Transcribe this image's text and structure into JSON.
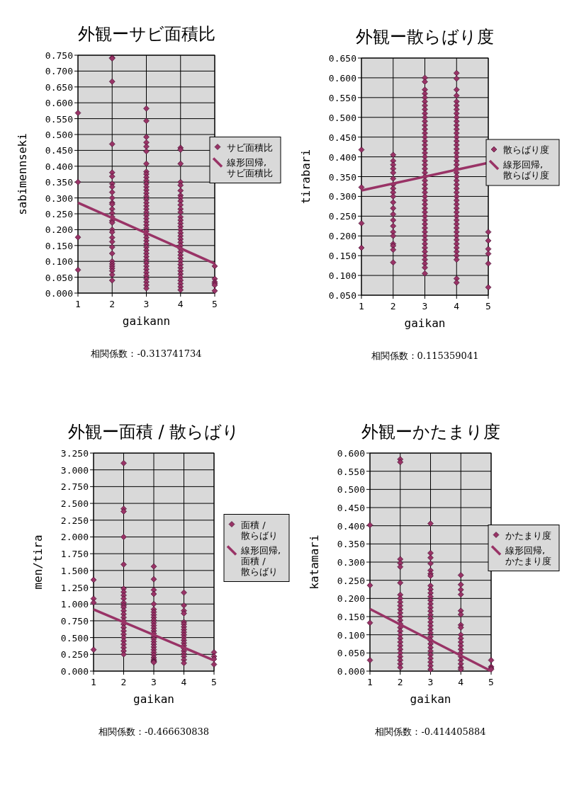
{
  "chart_data": [
    {
      "type": "scatter",
      "title": "外観ーサビ面積比",
      "xlabel": "gaikann",
      "ylabel": "sabimennseki",
      "annotations": [
        "相関係数：-0.313741734"
      ],
      "grid": true,
      "legend": "right",
      "xlim": [
        1,
        5
      ],
      "xticks": [
        1,
        2,
        3,
        4,
        5
      ],
      "ylim": [
        0,
        0.75
      ],
      "yticks": [
        {
          "value": 0,
          "label": "0.000"
        },
        {
          "value": 0.05,
          "label": "0.050"
        },
        {
          "value": 0.1,
          "label": "0.100"
        },
        {
          "value": 0.15,
          "label": "0.150"
        },
        {
          "value": 0.2,
          "label": "0.200"
        },
        {
          "value": 0.25,
          "label": "0.250"
        },
        {
          "value": 0.3,
          "label": "0.300"
        },
        {
          "value": 0.35,
          "label": "0.350"
        },
        {
          "value": 0.4,
          "label": "0.400"
        },
        {
          "value": 0.45,
          "label": "0.450"
        },
        {
          "value": 0.5,
          "label": "0.500"
        },
        {
          "value": 0.55,
          "label": "0.550"
        },
        {
          "value": 0.6,
          "label": "0.600"
        },
        {
          "value": 0.65,
          "label": "0.650"
        },
        {
          "value": 0.7,
          "label": "0.700"
        },
        {
          "value": 0.75,
          "label": "0.750"
        }
      ],
      "series": [
        {
          "name": "サビ面積比",
          "color": "#993366",
          "marker": "diamond",
          "x": [
            1,
            1,
            1,
            1,
            2,
            2,
            2,
            2,
            2,
            2,
            2,
            2,
            2,
            2,
            2,
            2,
            2,
            2,
            2,
            2,
            2,
            2,
            2,
            2,
            2,
            2,
            2,
            2,
            2,
            2,
            2,
            2,
            2,
            2,
            3,
            3,
            3,
            3,
            3,
            3,
            3,
            3,
            3,
            3,
            3,
            3,
            3,
            3,
            3,
            3,
            3,
            3,
            3,
            3,
            3,
            3,
            3,
            3,
            3,
            3,
            3,
            3,
            3,
            3,
            3,
            3,
            3,
            3,
            3,
            3,
            3,
            3,
            3,
            3,
            3,
            3,
            3,
            3,
            3,
            4,
            4,
            4,
            4,
            4,
            4,
            4,
            4,
            4,
            4,
            4,
            4,
            4,
            4,
            4,
            4,
            4,
            4,
            4,
            4,
            4,
            4,
            4,
            4,
            4,
            4,
            4,
            4,
            4,
            4,
            4,
            4,
            4,
            4,
            4,
            4,
            5,
            5,
            5,
            5,
            5,
            5
          ],
          "values": [
            0.568,
            0.35,
            0.176,
            0.073,
            0.742,
            0.74,
            0.667,
            0.47,
            0.38,
            0.368,
            0.345,
            0.335,
            0.318,
            0.3,
            0.285,
            0.28,
            0.265,
            0.252,
            0.24,
            0.228,
            0.222,
            0.2,
            0.192,
            0.175,
            0.162,
            0.145,
            0.125,
            0.1,
            0.092,
            0.085,
            0.078,
            0.07,
            0.058,
            0.04,
            0.582,
            0.543,
            0.492,
            0.475,
            0.462,
            0.447,
            0.408,
            0.383,
            0.375,
            0.365,
            0.355,
            0.345,
            0.335,
            0.325,
            0.315,
            0.305,
            0.295,
            0.285,
            0.275,
            0.265,
            0.255,
            0.245,
            0.235,
            0.225,
            0.215,
            0.205,
            0.195,
            0.185,
            0.175,
            0.165,
            0.155,
            0.145,
            0.135,
            0.125,
            0.115,
            0.105,
            0.095,
            0.085,
            0.075,
            0.065,
            0.055,
            0.045,
            0.035,
            0.025,
            0.015,
            0.458,
            0.452,
            0.408,
            0.35,
            0.34,
            0.323,
            0.308,
            0.3,
            0.29,
            0.278,
            0.265,
            0.255,
            0.24,
            0.23,
            0.22,
            0.21,
            0.2,
            0.19,
            0.18,
            0.17,
            0.16,
            0.15,
            0.14,
            0.13,
            0.12,
            0.11,
            0.1,
            0.09,
            0.08,
            0.07,
            0.06,
            0.05,
            0.04,
            0.03,
            0.02,
            0.01,
            0.085,
            0.045,
            0.035,
            0.03,
            0.025,
            0.007
          ]
        },
        {
          "name": "線形回帰, サビ面積比",
          "type": "line",
          "color": "#993366",
          "x": [
            1,
            5
          ],
          "values": [
            0.285,
            0.093
          ]
        }
      ]
    },
    {
      "type": "scatter",
      "title": "外観ー散らばり度",
      "xlabel": "gaikan",
      "ylabel": "tirabari",
      "annotations": [
        "相関係数：0.115359041"
      ],
      "grid": true,
      "legend": "right",
      "xlim": [
        1,
        5
      ],
      "xticks": [
        1,
        2,
        3,
        4,
        5
      ],
      "ylim": [
        0.05,
        0.65
      ],
      "yticks": [
        {
          "value": 0.05,
          "label": "0.050"
        },
        {
          "value": 0.1,
          "label": "0.100"
        },
        {
          "value": 0.15,
          "label": "0.150"
        },
        {
          "value": 0.2,
          "label": "0.200"
        },
        {
          "value": 0.25,
          "label": "0.250"
        },
        {
          "value": 0.3,
          "label": "0.300"
        },
        {
          "value": 0.35,
          "label": "0.350"
        },
        {
          "value": 0.4,
          "label": "0.400"
        },
        {
          "value": 0.45,
          "label": "0.450"
        },
        {
          "value": 0.5,
          "label": "0.500"
        },
        {
          "value": 0.55,
          "label": "0.550"
        },
        {
          "value": 0.6,
          "label": "0.600"
        },
        {
          "value": 0.65,
          "label": "0.650"
        }
      ],
      "series": [
        {
          "name": "散らばり度",
          "color": "#993366",
          "marker": "diamond",
          "x": [
            1,
            1,
            1,
            1,
            2,
            2,
            2,
            2,
            2,
            2,
            2,
            2,
            2,
            2,
            2,
            2,
            2,
            2,
            2,
            2,
            2,
            2,
            2,
            2,
            2,
            3,
            3,
            3,
            3,
            3,
            3,
            3,
            3,
            3,
            3,
            3,
            3,
            3,
            3,
            3,
            3,
            3,
            3,
            3,
            3,
            3,
            3,
            3,
            3,
            3,
            3,
            3,
            3,
            3,
            3,
            3,
            3,
            3,
            3,
            3,
            3,
            3,
            3,
            3,
            3,
            3,
            3,
            3,
            3,
            3,
            3,
            3,
            3,
            3,
            4,
            4,
            4,
            4,
            4,
            4,
            4,
            4,
            4,
            4,
            4,
            4,
            4,
            4,
            4,
            4,
            4,
            4,
            4,
            4,
            4,
            4,
            4,
            4,
            4,
            4,
            4,
            4,
            4,
            4,
            4,
            4,
            4,
            4,
            4,
            4,
            4,
            4,
            4,
            4,
            4,
            4,
            4,
            4,
            4,
            4,
            4,
            5,
            5,
            5,
            5,
            5,
            5
          ],
          "values": [
            0.418,
            0.323,
            0.232,
            0.17,
            0.405,
            0.39,
            0.38,
            0.37,
            0.36,
            0.345,
            0.33,
            0.32,
            0.31,
            0.3,
            0.285,
            0.27,
            0.255,
            0.24,
            0.225,
            0.21,
            0.2,
            0.18,
            0.175,
            0.165,
            0.133,
            0.6,
            0.59,
            0.57,
            0.56,
            0.55,
            0.54,
            0.53,
            0.52,
            0.51,
            0.5,
            0.49,
            0.48,
            0.47,
            0.46,
            0.45,
            0.44,
            0.43,
            0.42,
            0.41,
            0.4,
            0.39,
            0.38,
            0.37,
            0.36,
            0.35,
            0.34,
            0.33,
            0.32,
            0.31,
            0.3,
            0.29,
            0.28,
            0.27,
            0.26,
            0.25,
            0.24,
            0.23,
            0.22,
            0.21,
            0.2,
            0.19,
            0.18,
            0.17,
            0.16,
            0.15,
            0.14,
            0.13,
            0.12,
            0.105,
            0.612,
            0.598,
            0.57,
            0.555,
            0.54,
            0.53,
            0.52,
            0.51,
            0.5,
            0.49,
            0.48,
            0.47,
            0.46,
            0.45,
            0.44,
            0.43,
            0.42,
            0.41,
            0.4,
            0.39,
            0.38,
            0.37,
            0.36,
            0.35,
            0.34,
            0.33,
            0.32,
            0.31,
            0.3,
            0.29,
            0.28,
            0.27,
            0.26,
            0.25,
            0.24,
            0.23,
            0.22,
            0.21,
            0.2,
            0.19,
            0.18,
            0.17,
            0.16,
            0.15,
            0.14,
            0.092,
            0.082,
            0.21,
            0.188,
            0.167,
            0.155,
            0.13,
            0.07
          ]
        },
        {
          "name": "線形回帰, 散らばり度",
          "type": "line",
          "color": "#993366",
          "x": [
            1,
            5
          ],
          "values": [
            0.315,
            0.385
          ]
        }
      ]
    },
    {
      "type": "scatter",
      "title": "外観ー面積 / 散らばり",
      "xlabel": "gaikan",
      "ylabel": "men/tira",
      "annotations": [
        "相関係数：-0.466630838"
      ],
      "grid": true,
      "legend": "right",
      "xlim": [
        1,
        5
      ],
      "xticks": [
        1,
        2,
        3,
        4,
        5
      ],
      "ylim": [
        0,
        3.25
      ],
      "yticks": [
        {
          "value": 0,
          "label": "0.000"
        },
        {
          "value": 0.25,
          "label": "0.250"
        },
        {
          "value": 0.5,
          "label": "0.500"
        },
        {
          "value": 0.75,
          "label": "0.750"
        },
        {
          "value": 1,
          "label": "1.000"
        },
        {
          "value": 1.25,
          "label": "1.250"
        },
        {
          "value": 1.5,
          "label": "1.500"
        },
        {
          "value": 1.75,
          "label": "1.750"
        },
        {
          "value": 2,
          "label": "2.000"
        },
        {
          "value": 2.25,
          "label": "2.250"
        },
        {
          "value": 2.5,
          "label": "2.500"
        },
        {
          "value": 2.75,
          "label": "2.750"
        },
        {
          "value": 3,
          "label": "3.000"
        },
        {
          "value": 3.25,
          "label": "3.250"
        }
      ],
      "series": [
        {
          "name": "面積 / 散らばり",
          "color": "#993366",
          "marker": "diamond",
          "x": [
            1,
            1,
            1,
            1,
            2,
            2,
            2,
            2,
            2,
            2,
            2,
            2,
            2,
            2,
            2,
            2,
            2,
            2,
            2,
            2,
            2,
            2,
            2,
            2,
            2,
            2,
            2,
            2,
            2,
            2,
            3,
            3,
            3,
            3,
            3,
            3,
            3,
            3,
            3,
            3,
            3,
            3,
            3,
            3,
            3,
            3,
            3,
            3,
            3,
            3,
            3,
            3,
            3,
            3,
            3,
            3,
            3,
            3,
            4,
            4,
            4,
            4,
            4,
            4,
            4,
            4,
            4,
            4,
            4,
            4,
            4,
            4,
            4,
            4,
            4,
            4,
            4,
            4,
            5,
            5,
            5,
            5
          ],
          "values": [
            1.36,
            1.08,
            1.02,
            0.32,
            3.1,
            2.42,
            2.38,
            2,
            1.59,
            1.23,
            1.18,
            1.13,
            1.08,
            1.02,
            0.98,
            0.95,
            0.9,
            0.85,
            0.8,
            0.75,
            0.7,
            0.65,
            0.6,
            0.55,
            0.5,
            0.45,
            0.4,
            0.35,
            0.3,
            0.25,
            1.56,
            1.37,
            1.21,
            1.15,
            1,
            0.92,
            0.88,
            0.84,
            0.8,
            0.76,
            0.72,
            0.68,
            0.64,
            0.6,
            0.56,
            0.52,
            0.48,
            0.44,
            0.4,
            0.36,
            0.32,
            0.28,
            0.24,
            0.2,
            0.17,
            0.15,
            0.14,
            0.13,
            1.17,
            0.98,
            0.9,
            0.86,
            0.73,
            0.7,
            0.66,
            0.62,
            0.58,
            0.54,
            0.5,
            0.46,
            0.42,
            0.38,
            0.34,
            0.3,
            0.26,
            0.22,
            0.17,
            0.12,
            0.28,
            0.22,
            0.18,
            0.1
          ]
        },
        {
          "name": "線形回帰, 面積 / 散らばり",
          "type": "line",
          "color": "#993366",
          "x": [
            1,
            5
          ],
          "values": [
            0.92,
            0.16
          ]
        }
      ]
    },
    {
      "type": "scatter",
      "title": "外観ーかたまり度",
      "xlabel": "gaikan",
      "ylabel": "katamari",
      "annotations": [
        "相関係数：-0.414405884"
      ],
      "grid": true,
      "legend": "right",
      "xlim": [
        1,
        5
      ],
      "xticks": [
        1,
        2,
        3,
        4,
        5
      ],
      "ylim": [
        0,
        0.6
      ],
      "yticks": [
        {
          "value": 0,
          "label": "0.000"
        },
        {
          "value": 0.05,
          "label": "0.050"
        },
        {
          "value": 0.1,
          "label": "0.100"
        },
        {
          "value": 0.15,
          "label": "0.150"
        },
        {
          "value": 0.2,
          "label": "0.200"
        },
        {
          "value": 0.25,
          "label": "0.250"
        },
        {
          "value": 0.3,
          "label": "0.300"
        },
        {
          "value": 0.35,
          "label": "0.350"
        },
        {
          "value": 0.4,
          "label": "0.400"
        },
        {
          "value": 0.45,
          "label": "0.450"
        },
        {
          "value": 0.5,
          "label": "0.500"
        },
        {
          "value": 0.55,
          "label": "0.550"
        },
        {
          "value": 0.6,
          "label": "0.600"
        }
      ],
      "series": [
        {
          "name": "かたまり度",
          "color": "#993366",
          "marker": "diamond",
          "x": [
            1,
            1,
            1,
            1,
            2,
            2,
            2,
            2,
            2,
            2,
            2,
            2,
            2,
            2,
            2,
            2,
            2,
            2,
            2,
            2,
            2,
            2,
            2,
            2,
            2,
            2,
            2,
            2,
            2,
            2,
            2,
            3,
            3,
            3,
            3,
            3,
            3,
            3,
            3,
            3,
            3,
            3,
            3,
            3,
            3,
            3,
            3,
            3,
            3,
            3,
            3,
            3,
            3,
            3,
            3,
            3,
            3,
            3,
            3,
            3,
            3,
            3,
            4,
            4,
            4,
            4,
            4,
            4,
            4,
            4,
            4,
            4,
            4,
            4,
            4,
            4,
            4,
            4,
            4,
            4,
            4,
            5,
            5,
            5,
            5
          ],
          "values": [
            0.402,
            0.236,
            0.133,
            0.03,
            0.583,
            0.575,
            0.308,
            0.297,
            0.287,
            0.243,
            0.21,
            0.2,
            0.19,
            0.18,
            0.17,
            0.16,
            0.15,
            0.14,
            0.13,
            0.12,
            0.11,
            0.1,
            0.09,
            0.08,
            0.07,
            0.06,
            0.05,
            0.04,
            0.03,
            0.02,
            0.01,
            0.406,
            0.325,
            0.312,
            0.296,
            0.277,
            0.268,
            0.262,
            0.235,
            0.225,
            0.215,
            0.205,
            0.195,
            0.185,
            0.175,
            0.165,
            0.155,
            0.145,
            0.135,
            0.125,
            0.115,
            0.105,
            0.095,
            0.085,
            0.075,
            0.065,
            0.055,
            0.045,
            0.035,
            0.025,
            0.015,
            0.005,
            0.264,
            0.238,
            0.224,
            0.211,
            0.166,
            0.156,
            0.127,
            0.12,
            0.1,
            0.09,
            0.08,
            0.07,
            0.06,
            0.05,
            0.04,
            0.03,
            0.02,
            0.01,
            0.005,
            0.03,
            0.012,
            0.008,
            0.005
          ]
        },
        {
          "name": "線形回帰, かたまり度",
          "type": "line",
          "color": "#993366",
          "x": [
            1,
            5
          ],
          "values": [
            0.171,
            0
          ]
        }
      ]
    }
  ]
}
